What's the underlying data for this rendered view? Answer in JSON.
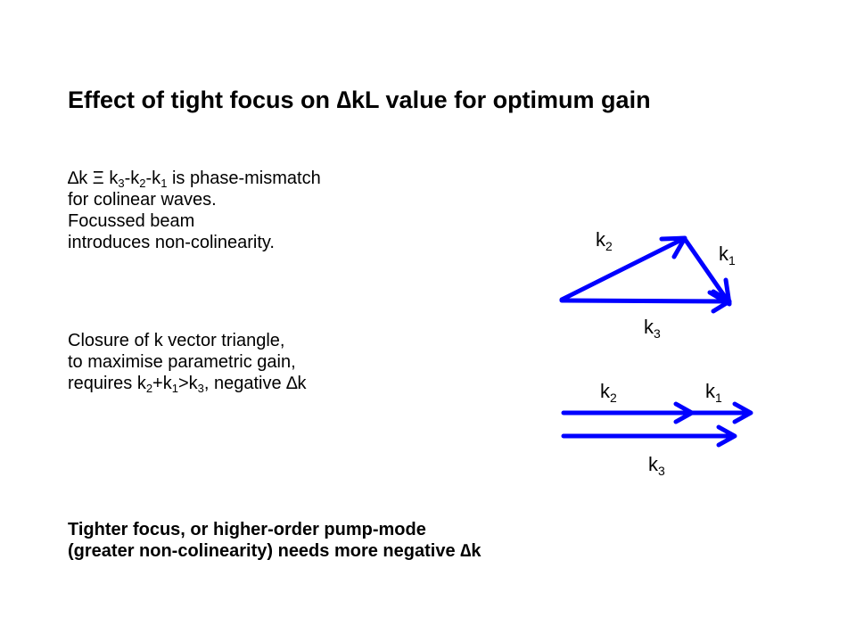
{
  "title": {
    "pre": "Effect of tight focus on ",
    "delta": "∆",
    "post": "kL value for optimum gain"
  },
  "para1": {
    "delta": "∆",
    "t1": "k Ξ k",
    "s1": "3",
    "t2": "-k",
    "s2": "2",
    "t3": "-k",
    "s3": "1",
    "t4": " is phase-mismatch",
    "line2": "for colinear waves.",
    "line3": "Focussed beam",
    "line4": "introduces non-colinearity."
  },
  "para2": {
    "line1": "Closure of  k vector triangle,",
    "line2": "to maximise parametric gain,",
    "l3a": "requires k",
    "l3s1": "2",
    "l3b": "+k",
    "l3s2": "1",
    "l3c": ">k",
    "l3s3": "3",
    "l3d": ", negative ",
    "l3delta": "∆",
    "l3e": "k"
  },
  "para3": {
    "line1": "Tighter focus, or higher-order pump-mode",
    "line2a": "(greater non-colinearity) needs more negative ",
    "line2delta": "∆",
    "line2b": "k"
  },
  "diagram": {
    "arrow_color": "#0000ff",
    "triangle": {
      "k2": {
        "base": "k",
        "sub": "2"
      },
      "k1": {
        "base": "k",
        "sub": "1"
      },
      "k3": {
        "base": "k",
        "sub": "3"
      }
    },
    "colinear": {
      "k2": {
        "base": "k",
        "sub": "2"
      },
      "k1": {
        "base": "k",
        "sub": "1"
      },
      "k3": {
        "base": "k",
        "sub": "3"
      }
    }
  }
}
